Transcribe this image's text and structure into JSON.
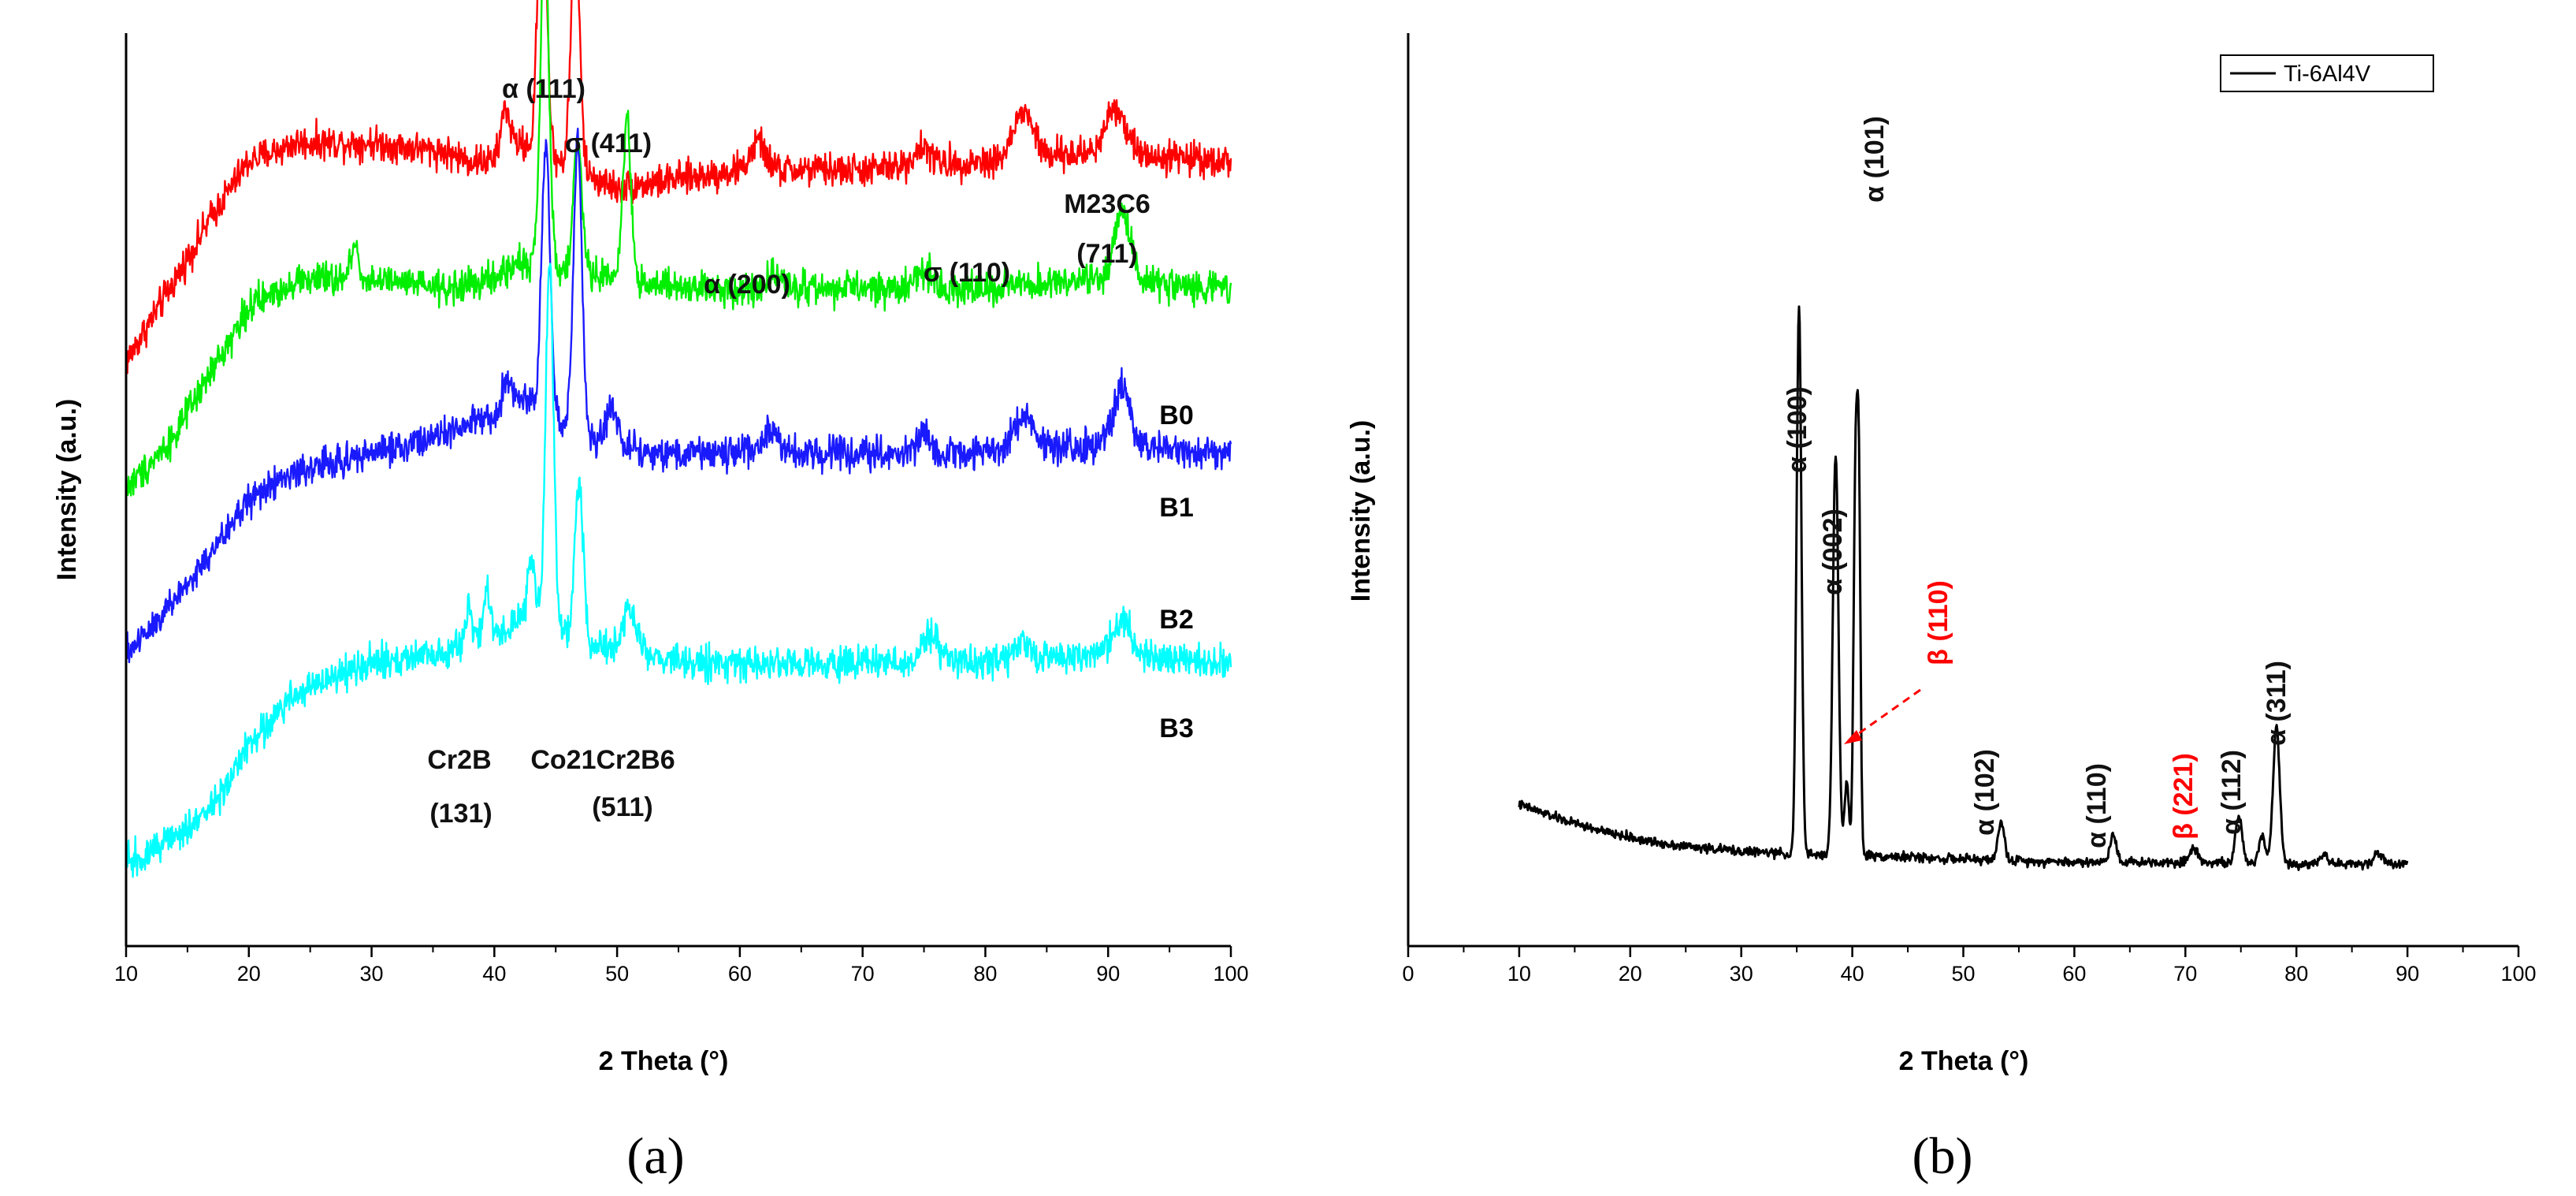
{
  "chart_data": [
    {
      "panel": "(a)",
      "type": "line",
      "xlabel": "2 Theta (°)",
      "ylabel": "Intensity (a.u.)",
      "xlim": [
        10,
        100
      ],
      "xticks": [
        10,
        20,
        30,
        40,
        50,
        60,
        70,
        80,
        90,
        100
      ],
      "yticks_labeled": false,
      "series": [
        {
          "name": "B0",
          "color": "#ff0000",
          "baseline": [
            [
              10,
              0.64
            ],
            [
              14,
              0.73
            ],
            [
              17,
              0.8
            ],
            [
              20,
              0.86
            ],
            [
              24,
              0.88
            ],
            [
              30,
              0.88
            ],
            [
              36,
              0.87
            ],
            [
              38,
              0.86
            ],
            [
              40,
              0.86
            ],
            [
              42,
              0.88
            ],
            [
              50,
              0.83
            ],
            [
              55,
              0.84
            ],
            [
              60,
              0.85
            ],
            [
              70,
              0.85
            ],
            [
              80,
              0.86
            ],
            [
              90,
              0.87
            ],
            [
              100,
              0.86
            ]
          ],
          "peaks": [
            [
              40.9,
              0.05,
              0.35
            ],
            [
              43.9,
              0.33,
              0.35
            ],
            [
              46.6,
              0.26,
              0.35
            ],
            [
              61.5,
              0.03,
              0.6
            ],
            [
              74.8,
              0.02,
              0.7
            ],
            [
              83.1,
              0.05,
              0.8
            ],
            [
              90.6,
              0.05,
              0.8
            ]
          ]
        },
        {
          "name": "B1",
          "color": "#00ee00",
          "baseline": [
            [
              10,
              0.5
            ],
            [
              14,
              0.56
            ],
            [
              17,
              0.63
            ],
            [
              20,
              0.7
            ],
            [
              24,
              0.73
            ],
            [
              30,
              0.73
            ],
            [
              36,
              0.72
            ],
            [
              40,
              0.73
            ],
            [
              42,
              0.75
            ],
            [
              55,
              0.72
            ],
            [
              60,
              0.72
            ],
            [
              70,
              0.72
            ],
            [
              80,
              0.72
            ],
            [
              90,
              0.73
            ],
            [
              100,
              0.72
            ]
          ],
          "peaks": [
            [
              28.6,
              0.04,
              0.3
            ],
            [
              44.1,
              0.35,
              0.35
            ],
            [
              46.8,
              0.14,
              0.35
            ],
            [
              50.8,
              0.17,
              0.35
            ],
            [
              63.0,
              0.02,
              0.6
            ],
            [
              75.0,
              0.02,
              0.7
            ],
            [
              91.2,
              0.08,
              0.6
            ]
          ]
        },
        {
          "name": "B2",
          "color": "#1a1aff",
          "baseline": [
            [
              10,
              0.32
            ],
            [
              14,
              0.38
            ],
            [
              17,
              0.43
            ],
            [
              20,
              0.49
            ],
            [
              24,
              0.52
            ],
            [
              30,
              0.54
            ],
            [
              36,
              0.56
            ],
            [
              40,
              0.58
            ],
            [
              42,
              0.6
            ],
            [
              48,
              0.55
            ],
            [
              55,
              0.54
            ],
            [
              60,
              0.54
            ],
            [
              70,
              0.54
            ],
            [
              80,
              0.54
            ],
            [
              90,
              0.55
            ],
            [
              100,
              0.54
            ]
          ],
          "peaks": [
            [
              41.0,
              0.03,
              0.35
            ],
            [
              44.2,
              0.3,
              0.35
            ],
            [
              46.8,
              0.32,
              0.35
            ],
            [
              49.5,
              0.04,
              0.5
            ],
            [
              62.5,
              0.03,
              0.6
            ],
            [
              75.0,
              0.02,
              0.7
            ],
            [
              83.2,
              0.04,
              0.8
            ],
            [
              91.2,
              0.06,
              0.7
            ]
          ]
        },
        {
          "name": "B3",
          "color": "#00ffff",
          "baseline": [
            [
              10,
              0.09
            ],
            [
              14,
              0.12
            ],
            [
              17,
              0.15
            ],
            [
              20,
              0.22
            ],
            [
              24,
              0.28
            ],
            [
              30,
              0.31
            ],
            [
              36,
              0.32
            ],
            [
              40,
              0.34
            ],
            [
              42,
              0.36
            ],
            [
              48,
              0.33
            ],
            [
              55,
              0.31
            ],
            [
              60,
              0.31
            ],
            [
              70,
              0.31
            ],
            [
              80,
              0.31
            ],
            [
              90,
              0.32
            ],
            [
              100,
              0.31
            ]
          ],
          "peaks": [
            [
              37.9,
              0.04,
              0.3
            ],
            [
              39.4,
              0.05,
              0.3
            ],
            [
              43.0,
              0.07,
              0.3
            ],
            [
              44.5,
              0.4,
              0.32
            ],
            [
              46.9,
              0.17,
              0.35
            ],
            [
              51.0,
              0.05,
              0.5
            ],
            [
              75.5,
              0.03,
              0.7
            ],
            [
              83.0,
              0.02,
              0.7
            ],
            [
              91.2,
              0.04,
              0.7
            ]
          ]
        }
      ],
      "annotations": [
        {
          "text": "α (111)"
        },
        {
          "text": "σ (411)"
        },
        {
          "text": "α (200)"
        },
        {
          "text": "σ (110)"
        },
        {
          "text": "M23C6"
        },
        {
          "text": "(711)"
        },
        {
          "text": "Cr2B"
        },
        {
          "text": "(131)"
        },
        {
          "text": "Co21Cr2B6"
        },
        {
          "text": "(511)"
        }
      ]
    },
    {
      "panel": "(b)",
      "type": "line",
      "xlabel": "2 Theta (°)",
      "ylabel": "Intensity (a.u.)",
      "xlim": [
        0,
        100
      ],
      "xticks": [
        0,
        10,
        20,
        30,
        40,
        50,
        60,
        70,
        80,
        90,
        100
      ],
      "yticks_labeled": false,
      "legend": {
        "entries": [
          "Ti-6Al4V"
        ],
        "location": "top-right"
      },
      "series": [
        {
          "name": "Ti-6Al4V",
          "color": "#000000",
          "x_range": [
            10,
            90
          ],
          "baseline": [
            [
              10,
              0.155
            ],
            [
              14,
              0.138
            ],
            [
              18,
              0.124
            ],
            [
              22,
              0.114
            ],
            [
              26,
              0.108
            ],
            [
              30,
              0.104
            ],
            [
              33,
              0.102
            ],
            [
              35,
              0.1
            ],
            [
              40,
              0.1
            ],
            [
              50,
              0.095
            ],
            [
              60,
              0.092
            ],
            [
              70,
              0.092
            ],
            [
              80,
              0.09
            ],
            [
              90,
              0.09
            ]
          ],
          "peaks": [
            [
              35.2,
              0.6,
              0.22
            ],
            [
              38.5,
              0.44,
              0.25
            ],
            [
              39.5,
              0.08,
              0.2
            ],
            [
              40.3,
              0.42,
              0.18
            ],
            [
              40.6,
              0.35,
              0.15
            ],
            [
              53.4,
              0.04,
              0.3
            ],
            [
              63.5,
              0.03,
              0.3
            ],
            [
              70.8,
              0.015,
              0.4
            ],
            [
              74.8,
              0.05,
              0.3
            ],
            [
              76.9,
              0.03,
              0.3
            ],
            [
              78.2,
              0.15,
              0.3
            ],
            [
              82.5,
              0.01,
              0.4
            ],
            [
              87.4,
              0.012,
              0.4
            ]
          ]
        }
      ],
      "annotations": [
        {
          "text": "α (100)",
          "color": "#000000"
        },
        {
          "text": "α (002)",
          "color": "#000000"
        },
        {
          "text": "α (101)",
          "color": "#000000"
        },
        {
          "text": "β (110)",
          "color": "#ff0000"
        },
        {
          "text": "α (102)",
          "color": "#000000"
        },
        {
          "text": "α (110)",
          "color": "#000000"
        },
        {
          "text": "β (221)",
          "color": "#ff0000"
        },
        {
          "text": "α (112)",
          "color": "#000000"
        },
        {
          "text": "α (311)",
          "color": "#000000"
        }
      ]
    }
  ]
}
